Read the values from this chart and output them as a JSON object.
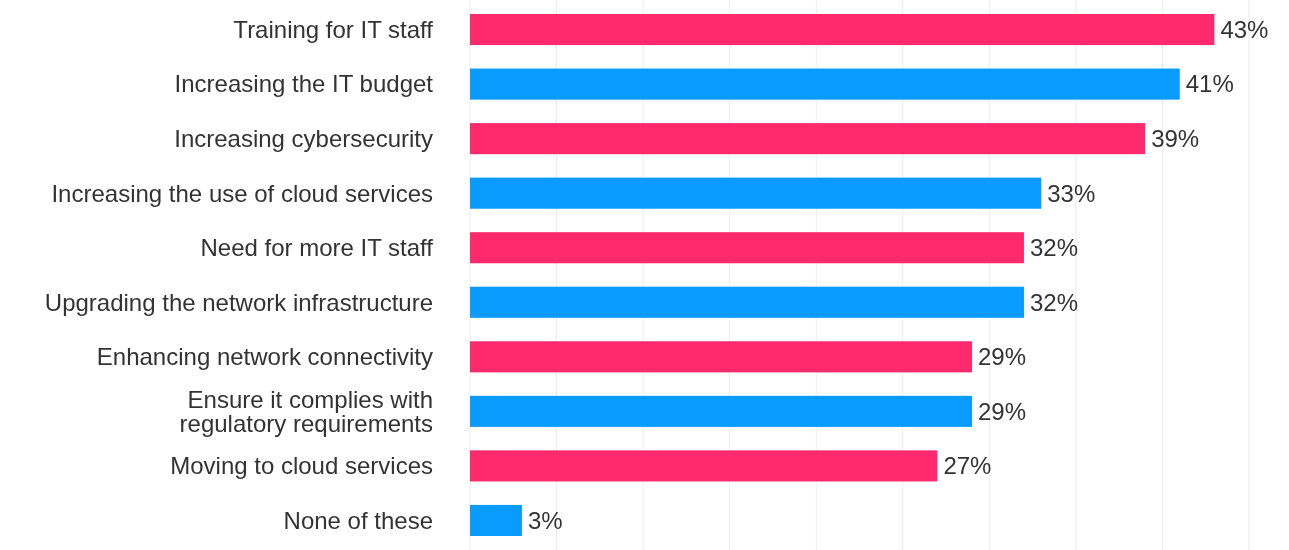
{
  "chart_data": {
    "type": "bar",
    "orientation": "horizontal",
    "categories": [
      "Training for IT staff",
      "Increasing the IT budget",
      "Increasing cybersecurity",
      "Increasing the use of cloud services",
      "Need for more IT staff",
      "Upgrading the network infrastructure",
      "Enhancing network connectivity",
      "Ensure it complies with\nregulatory requirements",
      "Moving to cloud services",
      "None of these"
    ],
    "values": [
      43,
      41,
      39,
      33,
      32,
      32,
      29,
      29,
      27,
      3
    ],
    "value_labels": [
      "43%",
      "41%",
      "39%",
      "33%",
      "32%",
      "32%",
      "29%",
      "29%",
      "27%",
      "3%"
    ],
    "colors": [
      "#ff2a6d",
      "#0a9bff",
      "#ff2a6d",
      "#0a9bff",
      "#ff2a6d",
      "#0a9bff",
      "#ff2a6d",
      "#0a9bff",
      "#ff2a6d",
      "#0a9bff"
    ],
    "xlim": [
      0,
      45
    ],
    "xticks": [
      {
        "value": 0,
        "label": null
      },
      {
        "value": 5,
        "label": null
      },
      {
        "value": 10,
        "label": null
      },
      {
        "value": 15,
        "label": null
      },
      {
        "value": 20,
        "label": null
      },
      {
        "value": 25,
        "label": null
      },
      {
        "value": 30,
        "label": null
      },
      {
        "value": 35,
        "label": null
      },
      {
        "value": 40,
        "label": null
      },
      {
        "value": 45,
        "label": null
      }
    ],
    "grid": "x",
    "tick_labels": "y"
  }
}
